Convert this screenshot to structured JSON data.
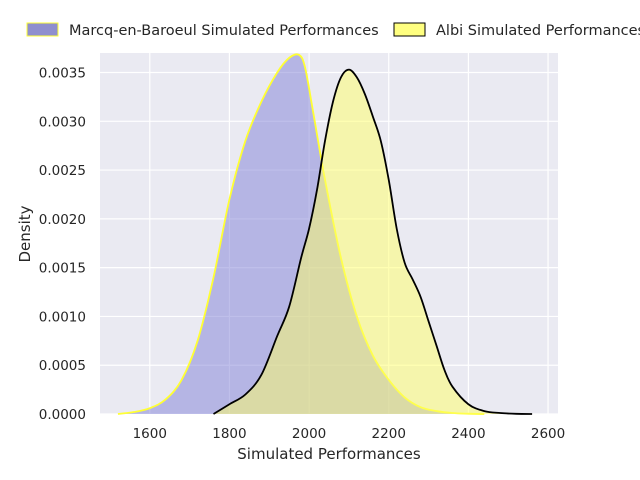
{
  "chart_data": {
    "type": "area",
    "title": "",
    "xlabel": "Simulated Performances",
    "ylabel": "Density",
    "xlim": [
      1475,
      2625
    ],
    "ylim": [
      0,
      0.0037
    ],
    "xticks": [
      1600,
      1800,
      2000,
      2200,
      2400,
      2600
    ],
    "xtick_labels": [
      "1600",
      "1800",
      "2000",
      "2200",
      "2400",
      "2600"
    ],
    "yticks": [
      0,
      0.0005,
      0.001,
      0.0015,
      0.002,
      0.0025,
      0.003,
      0.0035
    ],
    "ytick_labels": [
      "0.0000",
      "0.0005",
      "0.0010",
      "0.0015",
      "0.0020",
      "0.0025",
      "0.0030",
      "0.0035"
    ],
    "grid": true,
    "legend_position": "top",
    "series": [
      {
        "name": "Marcq-en-Baroeul Simulated Performances",
        "fill": "#7f7fd5",
        "line": "#ffff33",
        "x": [
          1520,
          1560,
          1600,
          1640,
          1680,
          1720,
          1760,
          1800,
          1840,
          1880,
          1920,
          1950,
          1975,
          1990,
          2010,
          2040,
          2080,
          2120,
          2160,
          2200,
          2240,
          2280,
          2320,
          2360,
          2400,
          2440
        ],
        "y": [
          0,
          2e-05,
          6e-05,
          0.00015,
          0.00035,
          0.00075,
          0.0014,
          0.0022,
          0.0028,
          0.0032,
          0.0035,
          0.00365,
          0.00368,
          0.00355,
          0.0031,
          0.0024,
          0.0016,
          0.001,
          0.0006,
          0.00035,
          0.00017,
          7e-05,
          3e-05,
          1e-05,
          3e-06,
          0
        ]
      },
      {
        "name": "Albi Simulated Performances",
        "fill": "#ffff66",
        "line": "#000000",
        "x": [
          1760,
          1800,
          1840,
          1880,
          1920,
          1950,
          1980,
          2000,
          2020,
          2040,
          2060,
          2080,
          2100,
          2120,
          2140,
          2160,
          2180,
          2200,
          2220,
          2240,
          2260,
          2280,
          2300,
          2320,
          2340,
          2360,
          2400,
          2440,
          2480,
          2520,
          2560
        ],
        "y": [
          0,
          0.0001,
          0.0002,
          0.0004,
          0.0008,
          0.0011,
          0.0016,
          0.0019,
          0.0023,
          0.0028,
          0.0032,
          0.00345,
          0.00353,
          0.00345,
          0.00328,
          0.00305,
          0.0028,
          0.0024,
          0.0019,
          0.00155,
          0.00138,
          0.0012,
          0.00095,
          0.0007,
          0.00045,
          0.00028,
          0.0001,
          3e-05,
          1e-05,
          2e-06,
          0
        ]
      }
    ]
  }
}
